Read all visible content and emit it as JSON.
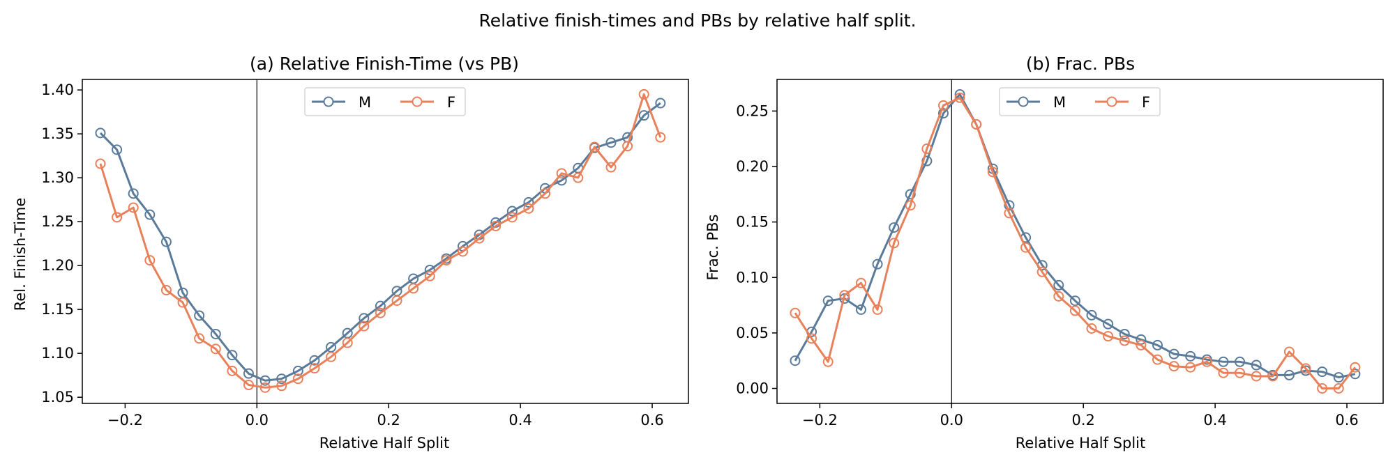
{
  "figure": {
    "suptitle": "Relative finish-times and PBs by relative half split."
  },
  "colors": {
    "M": "#5a7a9a",
    "F": "#e8805a",
    "axis": "#000000",
    "zero_line": "#000000"
  },
  "chart_data": [
    {
      "type": "line",
      "title": "(a) Relative Finish-Time (vs PB)",
      "xlabel": "Relative Half Split",
      "ylabel": "Rel. Finish-Time",
      "xlim": [
        -0.265,
        0.655
      ],
      "ylim": [
        1.043,
        1.412
      ],
      "xticks": [
        -0.2,
        0.0,
        0.2,
        0.4,
        0.6
      ],
      "xtick_labels": [
        "−0.2",
        "0.0",
        "0.2",
        "0.4",
        "0.6"
      ],
      "yticks": [
        1.05,
        1.1,
        1.15,
        1.2,
        1.25,
        1.3,
        1.35,
        1.4
      ],
      "ytick_labels": [
        "1.05",
        "1.10",
        "1.15",
        "1.20",
        "1.25",
        "1.30",
        "1.35",
        "1.40"
      ],
      "vline_x": 0,
      "legend": {
        "placement": "upper-center",
        "entries": [
          "M",
          "F"
        ]
      },
      "x": [
        -0.2375,
        -0.2125,
        -0.1875,
        -0.1625,
        -0.1375,
        -0.1125,
        -0.0875,
        -0.0625,
        -0.0375,
        -0.0125,
        0.0125,
        0.0375,
        0.0625,
        0.0875,
        0.1125,
        0.1375,
        0.1625,
        0.1875,
        0.2125,
        0.2375,
        0.2625,
        0.2875,
        0.3125,
        0.3375,
        0.3625,
        0.3875,
        0.4125,
        0.4375,
        0.4625,
        0.4875,
        0.5125,
        0.5375,
        0.5625,
        0.5875,
        0.6125
      ],
      "series": [
        {
          "name": "M",
          "values": [
            1.351,
            1.332,
            1.282,
            1.258,
            1.227,
            1.169,
            1.143,
            1.122,
            1.098,
            1.077,
            1.069,
            1.071,
            1.08,
            1.092,
            1.107,
            1.123,
            1.14,
            1.154,
            1.171,
            1.185,
            1.195,
            1.208,
            1.222,
            1.235,
            1.249,
            1.262,
            1.272,
            1.288,
            1.297,
            1.311,
            1.334,
            1.34,
            1.346,
            1.371,
            1.385
          ]
        },
        {
          "name": "F",
          "values": [
            1.316,
            1.255,
            1.266,
            1.206,
            1.172,
            1.158,
            1.117,
            1.105,
            1.08,
            1.064,
            1.061,
            1.063,
            1.071,
            1.083,
            1.096,
            1.112,
            1.131,
            1.146,
            1.16,
            1.174,
            1.188,
            1.206,
            1.216,
            1.231,
            1.245,
            1.255,
            1.265,
            1.282,
            1.305,
            1.3,
            1.335,
            1.312,
            1.336,
            1.395,
            1.346
          ]
        }
      ]
    },
    {
      "type": "line",
      "title": "(b) Frac. PBs",
      "xlabel": "Relative Half Split",
      "ylabel": "Frac. PBs",
      "xlim": [
        -0.265,
        0.655
      ],
      "ylim": [
        -0.0135,
        0.2785
      ],
      "xticks": [
        -0.2,
        0.0,
        0.2,
        0.4,
        0.6
      ],
      "xtick_labels": [
        "−0.2",
        "0.0",
        "0.2",
        "0.4",
        "0.6"
      ],
      "yticks": [
        0.0,
        0.05,
        0.1,
        0.15,
        0.2,
        0.25
      ],
      "ytick_labels": [
        "0.00",
        "0.05",
        "0.10",
        "0.15",
        "0.20",
        "0.25"
      ],
      "vline_x": 0,
      "legend": {
        "placement": "upper-center",
        "entries": [
          "M",
          "F"
        ]
      },
      "x": [
        -0.2375,
        -0.2125,
        -0.1875,
        -0.1625,
        -0.1375,
        -0.1125,
        -0.0875,
        -0.0625,
        -0.0375,
        -0.0125,
        0.0125,
        0.0375,
        0.0625,
        0.0875,
        0.1125,
        0.1375,
        0.1625,
        0.1875,
        0.2125,
        0.2375,
        0.2625,
        0.2875,
        0.3125,
        0.3375,
        0.3625,
        0.3875,
        0.4125,
        0.4375,
        0.4625,
        0.4875,
        0.5125,
        0.5375,
        0.5625,
        0.5875,
        0.6125
      ],
      "series": [
        {
          "name": "M",
          "values": [
            0.025,
            0.051,
            0.079,
            0.081,
            0.071,
            0.112,
            0.145,
            0.175,
            0.205,
            0.248,
            0.265,
            0.238,
            0.198,
            0.165,
            0.136,
            0.111,
            0.093,
            0.079,
            0.066,
            0.058,
            0.049,
            0.044,
            0.039,
            0.031,
            0.029,
            0.026,
            0.024,
            0.024,
            0.021,
            0.012,
            0.012,
            0.016,
            0.015,
            0.01,
            0.013
          ]
        },
        {
          "name": "F",
          "values": [
            0.068,
            0.045,
            0.024,
            0.084,
            0.095,
            0.071,
            0.131,
            0.165,
            0.216,
            0.255,
            0.262,
            0.238,
            0.195,
            0.158,
            0.127,
            0.105,
            0.083,
            0.07,
            0.054,
            0.047,
            0.043,
            0.039,
            0.026,
            0.02,
            0.019,
            0.024,
            0.014,
            0.014,
            0.011,
            0.011,
            0.033,
            0.018,
            0.0,
            0.0,
            0.019
          ]
        }
      ]
    }
  ]
}
